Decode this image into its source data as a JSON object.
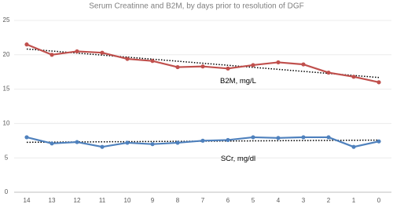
{
  "chart_data": {
    "type": "line",
    "title": "Serum Creatinne and B2M, by days prior to resolution of DGF",
    "categories": [
      "14",
      "13",
      "12",
      "11",
      "10",
      "9",
      "8",
      "7",
      "6",
      "5",
      "4",
      "3",
      "2",
      "1",
      "0"
    ],
    "series": [
      {
        "name": "B2M, mg/L",
        "color": "#c0504d",
        "values": [
          21.5,
          20.0,
          20.5,
          20.3,
          19.4,
          19.1,
          18.2,
          18.3,
          18.0,
          18.5,
          18.9,
          18.6,
          17.4,
          16.8,
          16.0
        ]
      },
      {
        "name": "SCr, mg/dl",
        "color": "#4f81bd",
        "values": [
          8.0,
          7.1,
          7.3,
          6.6,
          7.2,
          7.0,
          7.2,
          7.5,
          7.6,
          8.0,
          7.9,
          8.0,
          8.0,
          6.6,
          7.4
        ]
      }
    ],
    "ylim": [
      0,
      25
    ],
    "yticks": [
      0,
      5,
      10,
      15,
      20,
      25
    ],
    "grid": true,
    "trendline": true
  }
}
